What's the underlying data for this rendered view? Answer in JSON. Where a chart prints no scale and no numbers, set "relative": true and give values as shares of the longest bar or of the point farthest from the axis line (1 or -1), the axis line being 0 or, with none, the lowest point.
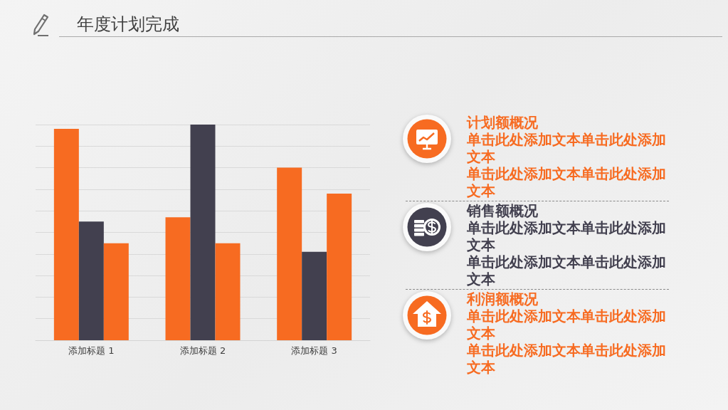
{
  "chart_data": {
    "type": "bar",
    "title": "年度计划完成",
    "categories": [
      "添加标题 1",
      "添加标题 2",
      "添加标题 3"
    ],
    "series": [
      {
        "color": "#f76b21",
        "values": [
          0.98,
          0.57,
          0.8
        ]
      },
      {
        "color": "#42404f",
        "values": [
          0.55,
          1,
          0.41
        ]
      },
      {
        "color": "#f76b21",
        "values": [
          0.45,
          0.45,
          0.68
        ]
      }
    ],
    "relative": true,
    "grid": "y",
    "annotations": [
      "计划额概况",
      "单击此处添加文本单击此处添加文本",
      "单击此处添加文本单击此处添加文本",
      "销售额概况",
      "单击此处添加文本单击此处添加文本",
      "单击此处添加文本单击此处添加文本",
      "利润额概况",
      "单击此处添加文本单击此处添加文本",
      "单击此处添加文本单击此处添加文本"
    ]
  }
}
